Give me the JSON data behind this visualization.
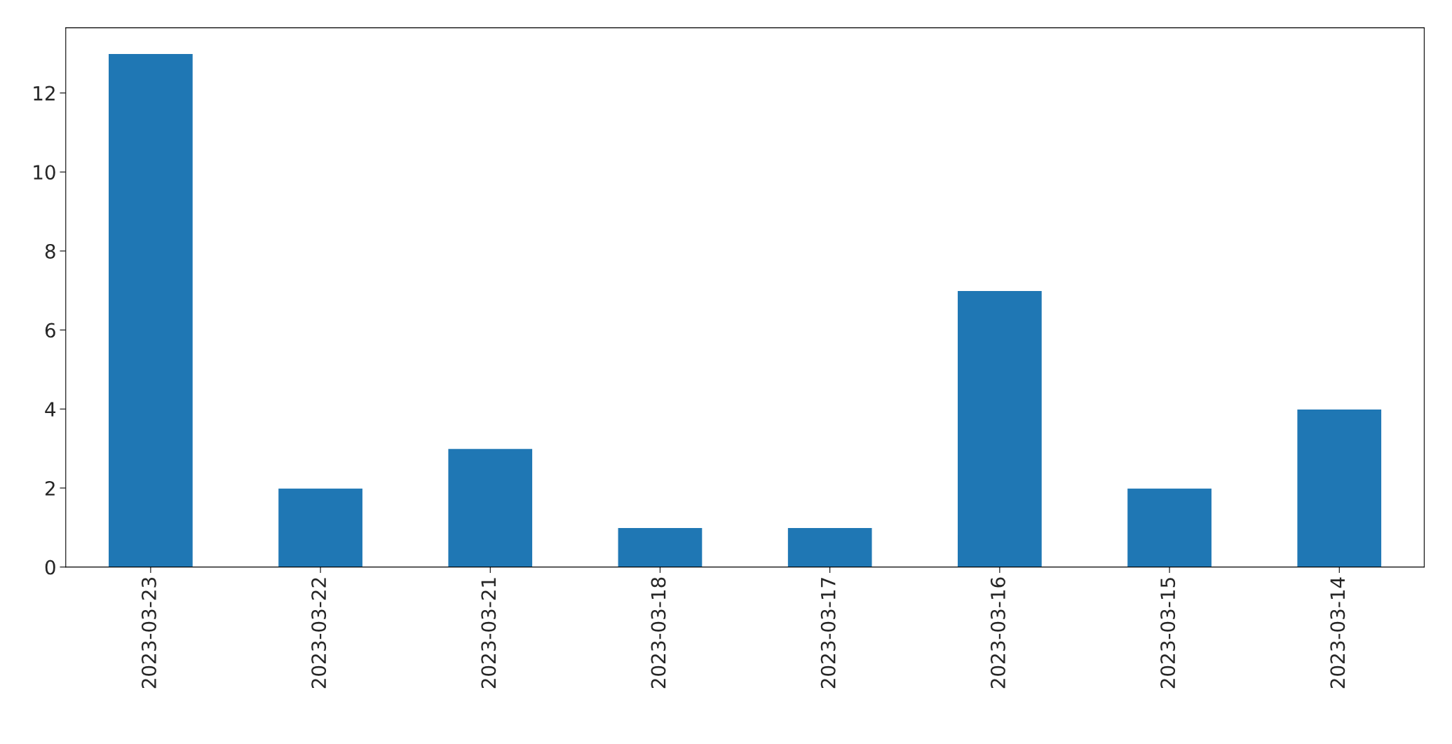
{
  "chart_data": {
    "type": "bar",
    "categories": [
      "2023-03-23",
      "2023-03-22",
      "2023-03-21",
      "2023-03-18",
      "2023-03-17",
      "2023-03-16",
      "2023-03-15",
      "2023-03-14"
    ],
    "values": [
      13,
      2,
      3,
      1,
      1,
      7,
      2,
      4
    ],
    "color": "#1f77b4",
    "ylim": [
      0,
      13.65
    ],
    "yticks": [
      0,
      2,
      4,
      6,
      8,
      10,
      12
    ],
    "grid": false
  }
}
